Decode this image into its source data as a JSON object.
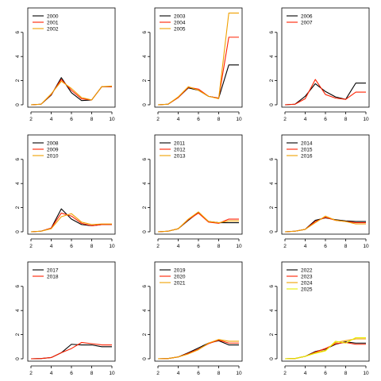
{
  "chart_data": [
    {
      "type": "line",
      "xlim": [
        2,
        10
      ],
      "ylim": [
        0,
        7.5
      ],
      "xticks": [
        2,
        4,
        6,
        8,
        10
      ],
      "yticks": [
        0,
        2,
        4,
        6
      ],
      "grid": false,
      "legend": "top-left",
      "x": [
        2,
        3,
        4,
        5,
        6,
        7,
        8,
        9,
        10
      ],
      "series": [
        {
          "name": "2000",
          "color": "#000000",
          "values": [
            0,
            0.05,
            0.8,
            2.25,
            1.0,
            0.35,
            0.4,
            1.5,
            1.5
          ]
        },
        {
          "name": "2001",
          "color": "#ff2000",
          "values": [
            0,
            0.05,
            0.85,
            2.1,
            1.2,
            0.5,
            0.4,
            1.5,
            1.5
          ]
        },
        {
          "name": "2002",
          "color": "#f0a000",
          "values": [
            0,
            0.05,
            0.9,
            1.95,
            1.35,
            0.6,
            0.4,
            1.5,
            1.55
          ]
        }
      ]
    },
    {
      "type": "line",
      "xlim": [
        2,
        10
      ],
      "ylim": [
        0,
        7.5
      ],
      "xticks": [
        2,
        4,
        6,
        8,
        10
      ],
      "yticks": [
        0,
        2,
        4,
        6
      ],
      "grid": false,
      "legend": "top-left",
      "x": [
        2,
        3,
        4,
        5,
        6,
        7,
        8,
        9,
        10
      ],
      "series": [
        {
          "name": "2003",
          "color": "#000000",
          "values": [
            0,
            0.05,
            0.6,
            1.4,
            1.2,
            0.7,
            0.55,
            3.3,
            3.3
          ]
        },
        {
          "name": "2004",
          "color": "#ff2000",
          "values": [
            0,
            0.05,
            0.6,
            1.45,
            1.3,
            0.7,
            0.55,
            5.6,
            5.6
          ]
        },
        {
          "name": "2005",
          "color": "#f0a000",
          "values": [
            0,
            0.05,
            0.65,
            1.5,
            1.2,
            0.7,
            0.5,
            7.6,
            7.6
          ]
        }
      ]
    },
    {
      "type": "line",
      "xlim": [
        2,
        10
      ],
      "ylim": [
        0,
        7.5
      ],
      "xticks": [
        2,
        4,
        6,
        8,
        10
      ],
      "yticks": [
        0,
        2,
        4,
        6
      ],
      "grid": false,
      "legend": "top-left",
      "x": [
        2,
        3,
        4,
        5,
        6,
        7,
        8,
        9,
        10
      ],
      "series": [
        {
          "name": "2006",
          "color": "#000000",
          "values": [
            0,
            0.05,
            0.7,
            1.75,
            1.1,
            0.65,
            0.45,
            1.8,
            1.8
          ]
        },
        {
          "name": "2007",
          "color": "#ff2000",
          "values": [
            0,
            0.05,
            0.5,
            2.1,
            0.85,
            0.55,
            0.45,
            1.05,
            1.05
          ]
        }
      ]
    },
    {
      "type": "line",
      "xlim": [
        2,
        10
      ],
      "ylim": [
        0,
        7.5
      ],
      "xticks": [
        2,
        4,
        6,
        8,
        10
      ],
      "yticks": [
        0,
        2,
        4,
        6
      ],
      "grid": false,
      "legend": "top-left",
      "x": [
        2,
        3,
        4,
        5,
        6,
        7,
        8,
        9,
        10
      ],
      "series": [
        {
          "name": "2008",
          "color": "#000000",
          "values": [
            0,
            0.05,
            0.3,
            1.9,
            1.05,
            0.6,
            0.5,
            0.6,
            0.6
          ]
        },
        {
          "name": "2009",
          "color": "#ff2000",
          "values": [
            0,
            0.05,
            0.3,
            1.55,
            1.3,
            0.7,
            0.5,
            0.6,
            0.6
          ]
        },
        {
          "name": "2010",
          "color": "#f0a000",
          "values": [
            0,
            0.05,
            0.25,
            1.25,
            1.5,
            0.8,
            0.6,
            0.65,
            0.65
          ]
        }
      ]
    },
    {
      "type": "line",
      "xlim": [
        2,
        10
      ],
      "ylim": [
        0,
        7.5
      ],
      "xticks": [
        2,
        4,
        6,
        8,
        10
      ],
      "yticks": [
        0,
        2,
        4,
        6
      ],
      "grid": false,
      "legend": "top-left",
      "x": [
        2,
        3,
        4,
        5,
        6,
        7,
        8,
        9,
        10
      ],
      "series": [
        {
          "name": "2011",
          "color": "#000000",
          "values": [
            0,
            0.05,
            0.25,
            0.95,
            1.6,
            0.85,
            0.75,
            0.75,
            0.75
          ]
        },
        {
          "name": "2012",
          "color": "#ff2000",
          "values": [
            0,
            0.05,
            0.25,
            1.0,
            1.55,
            0.8,
            0.7,
            1.05,
            1.05
          ]
        },
        {
          "name": "2013",
          "color": "#f0a000",
          "values": [
            0,
            0.05,
            0.25,
            1.05,
            1.65,
            0.85,
            0.75,
            0.9,
            0.9
          ]
        }
      ]
    },
    {
      "type": "line",
      "xlim": [
        2,
        10
      ],
      "ylim": [
        0,
        7.5
      ],
      "xticks": [
        2,
        4,
        6,
        8,
        10
      ],
      "yticks": [
        0,
        2,
        4,
        6
      ],
      "grid": false,
      "legend": "top-left",
      "x": [
        2,
        3,
        4,
        5,
        6,
        7,
        8,
        9,
        10
      ],
      "series": [
        {
          "name": "2014",
          "color": "#000000",
          "values": [
            0,
            0.05,
            0.2,
            0.95,
            1.15,
            1.0,
            0.9,
            0.85,
            0.85
          ]
        },
        {
          "name": "2015",
          "color": "#ff2000",
          "values": [
            0,
            0.05,
            0.2,
            0.85,
            1.2,
            0.95,
            0.85,
            0.75,
            0.75
          ]
        },
        {
          "name": "2016",
          "color": "#f0a000",
          "values": [
            0,
            0.05,
            0.2,
            0.75,
            1.3,
            0.95,
            0.85,
            0.65,
            0.65
          ]
        }
      ]
    },
    {
      "type": "line",
      "xlim": [
        2,
        10
      ],
      "ylim": [
        0,
        7.5
      ],
      "xticks": [
        2,
        4,
        6,
        8,
        10
      ],
      "yticks": [
        0,
        2,
        4,
        6
      ],
      "grid": false,
      "legend": "top-left",
      "x": [
        2,
        3,
        4,
        5,
        6,
        7,
        8,
        9,
        10
      ],
      "series": [
        {
          "name": "2017",
          "color": "#000000",
          "values": [
            0,
            0.02,
            0.1,
            0.5,
            1.2,
            1.15,
            1.15,
            1.0,
            1.0
          ]
        },
        {
          "name": "2018",
          "color": "#ff2000",
          "values": [
            0,
            0.02,
            0.1,
            0.5,
            0.85,
            1.35,
            1.25,
            1.15,
            1.15
          ]
        }
      ]
    },
    {
      "type": "line",
      "xlim": [
        2,
        10
      ],
      "ylim": [
        0,
        7.5
      ],
      "xticks": [
        2,
        4,
        6,
        8,
        10
      ],
      "yticks": [
        0,
        2,
        4,
        6
      ],
      "grid": false,
      "legend": "top-left",
      "x": [
        2,
        3,
        4,
        5,
        6,
        7,
        8,
        9,
        10
      ],
      "series": [
        {
          "name": "2019",
          "color": "#000000",
          "values": [
            0,
            0.02,
            0.15,
            0.5,
            0.9,
            1.3,
            1.5,
            1.15,
            1.15
          ]
        },
        {
          "name": "2020",
          "color": "#ff2000",
          "values": [
            0,
            0.02,
            0.15,
            0.45,
            0.8,
            1.25,
            1.55,
            1.3,
            1.3
          ]
        },
        {
          "name": "2021",
          "color": "#f0a000",
          "values": [
            0,
            0.02,
            0.15,
            0.4,
            0.75,
            1.3,
            1.6,
            1.45,
            1.45
          ]
        }
      ]
    },
    {
      "type": "line",
      "xlim": [
        2,
        10
      ],
      "ylim": [
        0,
        7.5
      ],
      "xticks": [
        2,
        4,
        6,
        8,
        10
      ],
      "yticks": [
        0,
        2,
        4,
        6
      ],
      "grid": false,
      "legend": "top-left",
      "x": [
        2,
        3,
        4,
        5,
        6,
        7,
        8,
        9,
        10
      ],
      "series": [
        {
          "name": "2022",
          "color": "#000000",
          "values": [
            0,
            0.02,
            0.2,
            0.6,
            0.8,
            1.2,
            1.4,
            1.3,
            1.3
          ]
        },
        {
          "name": "2023",
          "color": "#ff2000",
          "values": [
            0,
            0.02,
            0.2,
            0.55,
            0.85,
            1.25,
            1.35,
            1.2,
            1.2
          ]
        },
        {
          "name": "2024",
          "color": "#f0a000",
          "values": [
            0,
            0.02,
            0.2,
            0.5,
            0.7,
            1.35,
            1.5,
            1.65,
            1.65
          ]
        },
        {
          "name": "2025",
          "color": "#e6ee00",
          "values": [
            0,
            0.02,
            0.2,
            0.45,
            0.65,
            1.45,
            1.3,
            1.75,
            1.75
          ]
        }
      ]
    }
  ]
}
